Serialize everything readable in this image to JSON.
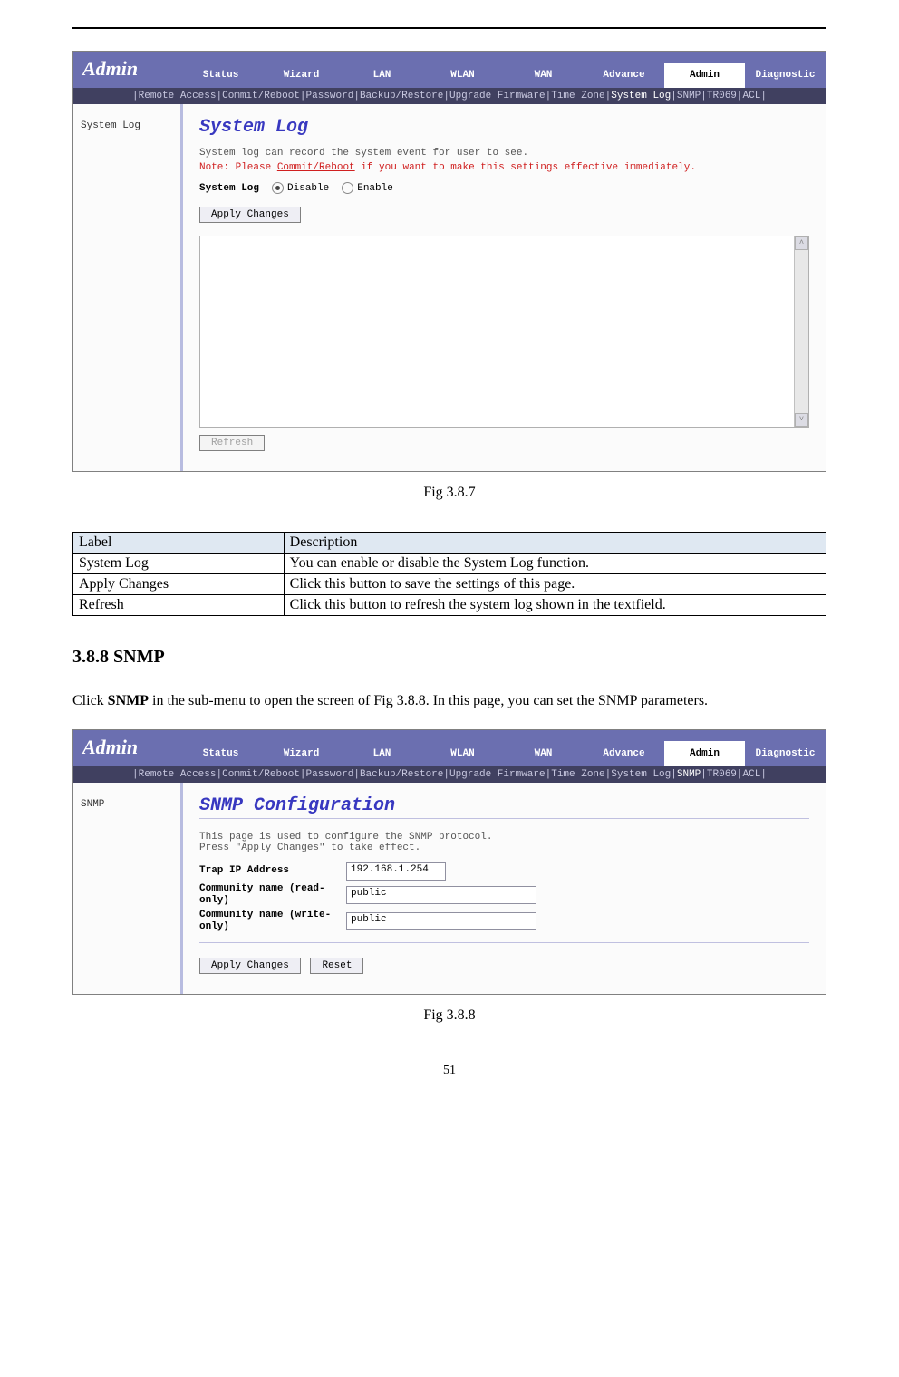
{
  "colors": {
    "header_bg": "#6b6fb0",
    "submenu_bg": "#404060",
    "side_border": "#b8bce0",
    "title_color": "#3838c0",
    "note_color": "#d02020",
    "table_header_bg": "#dfe8f2"
  },
  "router1": {
    "brand": "Admin",
    "tabs": [
      "Status",
      "Wizard",
      "LAN",
      "WLAN",
      "WAN",
      "Advance",
      "Admin",
      "Diagnostic"
    ],
    "active_tab_index": 6,
    "submenu": [
      "Remote Access",
      "Commit/Reboot",
      "Password",
      "Backup/Restore",
      "Upgrade Firmware",
      "Time Zone",
      "System Log",
      "SNMP",
      "TR069",
      "ACL"
    ],
    "submenu_active_index": 6,
    "side_label": "System Log",
    "title": "System Log",
    "desc": "System log can record the system event for user to see.",
    "note_prefix": "Note: Please ",
    "note_link": "Commit/Reboot",
    "note_suffix": " if you want to make this settings effective immediately.",
    "opt_label": "System Log",
    "radio_disable": "Disable",
    "radio_enable": "Enable",
    "btn_apply": "Apply Changes",
    "btn_refresh": "Refresh"
  },
  "caption1": "Fig 3.8.7",
  "desc_table": {
    "headers": [
      "Label",
      "Description"
    ],
    "rows": [
      [
        "System Log",
        "You can enable or disable the System Log function."
      ],
      [
        "Apply Changes",
        "Click this button to save the settings of this page."
      ],
      [
        "Refresh",
        "Click this button to refresh the system log shown in the textfield."
      ]
    ]
  },
  "section_title": "3.8.8 SNMP",
  "section_body_1": "Click ",
  "section_body_bold": "SNMP",
  "section_body_2": " in the sub-menu to open the screen of Fig 3.8.8. In this page, you can set the SNMP parameters.",
  "router2": {
    "brand": "Admin",
    "tabs": [
      "Status",
      "Wizard",
      "LAN",
      "WLAN",
      "WAN",
      "Advance",
      "Admin",
      "Diagnostic"
    ],
    "active_tab_index": 6,
    "submenu": [
      "Remote Access",
      "Commit/Reboot",
      "Password",
      "Backup/Restore",
      "Upgrade Firmware",
      "Time Zone",
      "System Log",
      "SNMP",
      "TR069",
      "ACL"
    ],
    "submenu_active_index": 7,
    "side_label": "SNMP",
    "title": "SNMP Configuration",
    "desc1": "This page is used to configure the SNMP protocol.",
    "desc2": "Press \"Apply Changes\" to take effect.",
    "field_trap": "Trap IP Address",
    "val_trap": "192.168.1.254",
    "field_cro": "Community name (read-only)",
    "val_cro": "public",
    "field_cwo": "Community name (write-only)",
    "val_cwo": "public",
    "btn_apply": "Apply Changes",
    "btn_reset": "Reset"
  },
  "caption2": "Fig 3.8.8",
  "page_number": "51"
}
